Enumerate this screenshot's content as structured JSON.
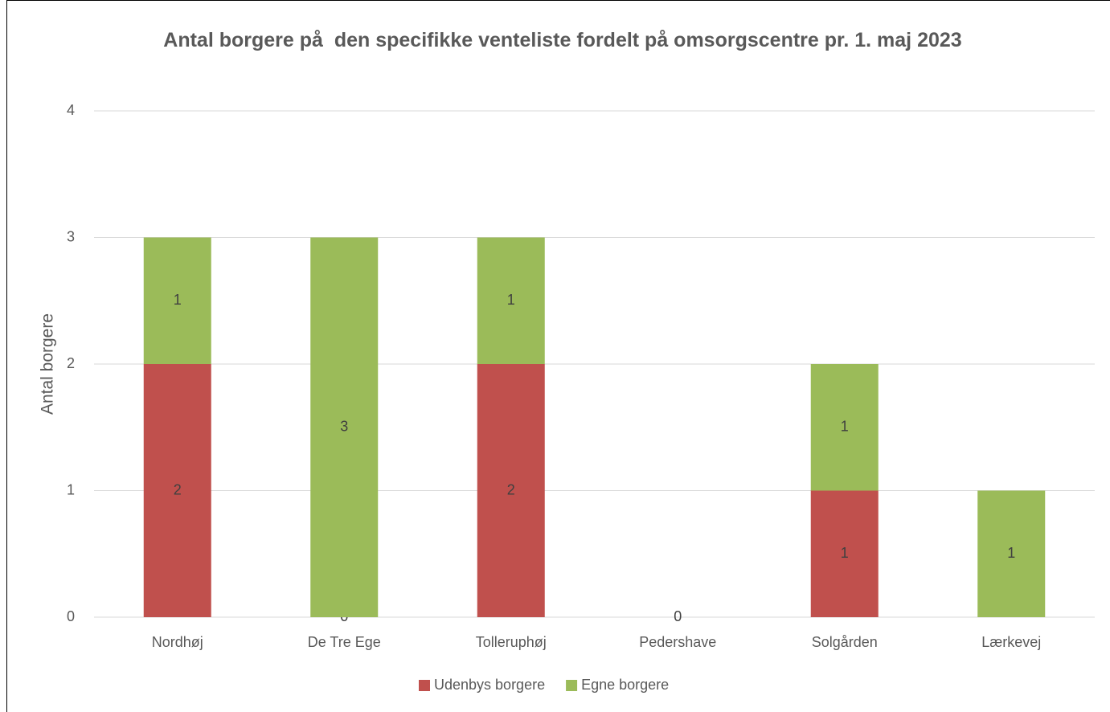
{
  "chart_data": {
    "type": "stacked_bar",
    "title": "Antal borgere på  den specifikke venteliste fordelt på omsorgscentre pr. 1. maj 2023",
    "y_label": "Antal borgere",
    "categories": [
      "Nordhøj",
      "De Tre Ege",
      "Tolleruphøj",
      "Pedershave",
      "Solgården",
      "Lærkevej"
    ],
    "series": [
      {
        "name": "Udenbys borgere",
        "color": "#c0504d",
        "values": [
          2,
          0,
          2,
          0,
          1,
          null
        ]
      },
      {
        "name": "Egne borgere",
        "color": "#9bbb59",
        "values": [
          1,
          3,
          1,
          null,
          1,
          1
        ]
      }
    ],
    "ylim": [
      0,
      4
    ],
    "yticks": [
      0,
      1,
      2,
      3,
      4
    ],
    "grid": true,
    "legend": "bottom"
  }
}
